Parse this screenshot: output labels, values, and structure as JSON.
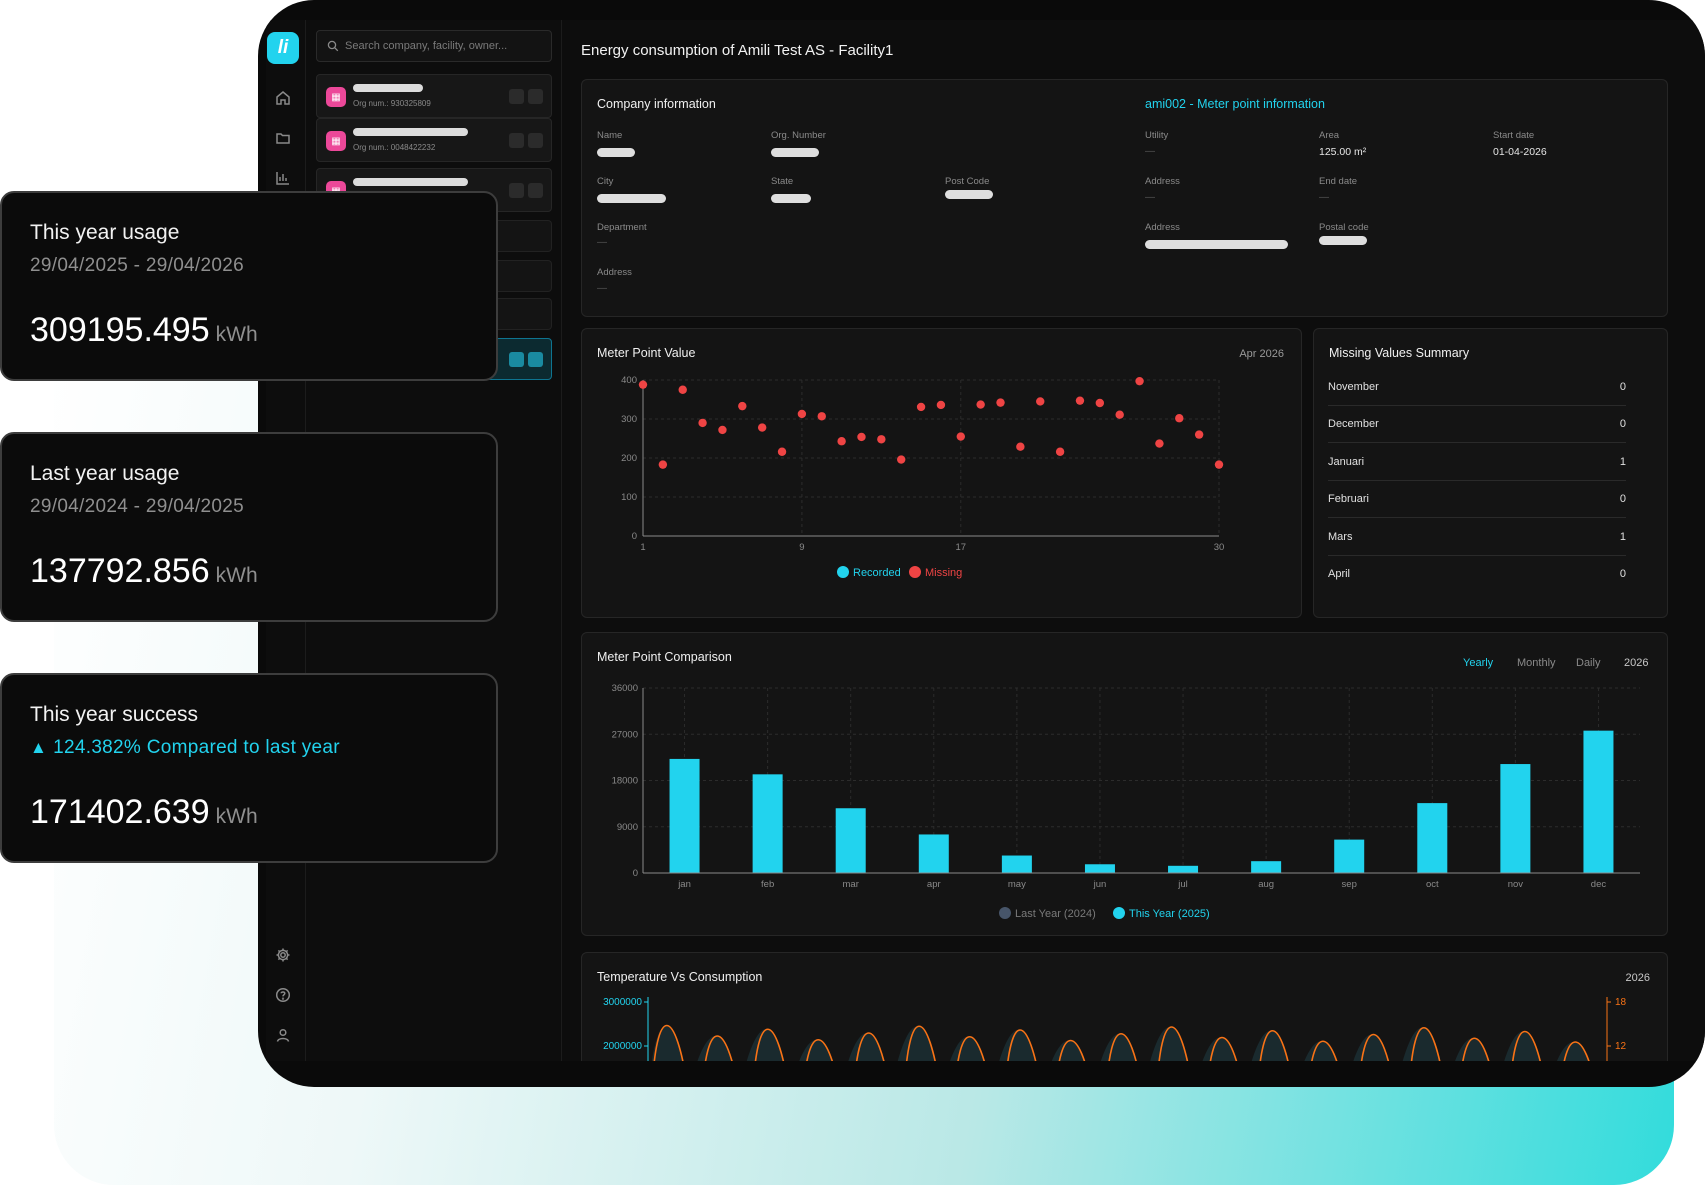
{
  "app": {
    "logo_text": "li",
    "accent": "#22d3ee",
    "missing_color": "#ef4444"
  },
  "nav_icons": [
    "home-icon",
    "folder-icon",
    "bar-chart-icon",
    "gear-icon",
    "help-icon",
    "user-icon"
  ],
  "sidebar": {
    "search_placeholder": "Search company, facility, owner...",
    "companies": [
      {
        "org": "Org num.: 930325809"
      },
      {
        "org": "Org num.: 0048422232"
      }
    ]
  },
  "page": {
    "title": "Energy consumption of Amili Test AS - Facility1"
  },
  "company_info": {
    "title": "Company information",
    "name_label": "Name",
    "org_label": "Org. Number",
    "city_label": "City",
    "state_label": "State",
    "postcode_label": "Post Code",
    "department_label": "Department",
    "department_value": "—",
    "address_label": "Address",
    "address_value": "—"
  },
  "meter_info": {
    "title": "ami002 - Meter point information",
    "utility_label": "Utility",
    "utility_value": "—",
    "area_label": "Area",
    "area_value": "125.00 m²",
    "start_label": "Start date",
    "start_value": "01-04-2026",
    "address_label": "Address",
    "address_value": "—",
    "end_label": "End date",
    "end_value": "—",
    "address2_label": "Address",
    "postal_label": "Postal code"
  },
  "meter_value": {
    "title": "Meter Point Value",
    "period": "Apr 2026",
    "legend_recorded": "Recorded",
    "legend_missing": "Missing"
  },
  "missing_summary": {
    "title": "Missing Values Summary",
    "rows": [
      {
        "month": "November",
        "value": "0"
      },
      {
        "month": "December",
        "value": "0"
      },
      {
        "month": "Januari",
        "value": "1"
      },
      {
        "month": "Februari",
        "value": "0"
      },
      {
        "month": "Mars",
        "value": "1"
      },
      {
        "month": "April",
        "value": "0"
      }
    ]
  },
  "comparison": {
    "title": "Meter Point Comparison",
    "tabs": {
      "yearly": "Yearly",
      "monthly": "Monthly",
      "daily": "Daily"
    },
    "year": "2026",
    "legend_last": "Last Year (2024)",
    "legend_this": "This Year (2025)"
  },
  "temperature": {
    "title": "Temperature Vs Consumption",
    "year": "2026",
    "left_ticks": [
      "3000000",
      "2000000"
    ],
    "right_ticks": [
      "18",
      "12"
    ]
  },
  "overlays": [
    {
      "title": "This year usage",
      "subtitle": "29/04/2025 - 29/04/2026",
      "value": "309195.495",
      "unit": "kWh"
    },
    {
      "title": "Last year usage",
      "subtitle": "29/04/2024 - 29/04/2025",
      "value": "137792.856",
      "unit": "kWh"
    },
    {
      "title": "This year success",
      "subtitle": "124.382% Compared to last year",
      "value": "171402.639",
      "unit": "kWh"
    }
  ],
  "chart_data": [
    {
      "type": "scatter",
      "title": "Meter Point Value",
      "x_ticks": [
        1,
        9,
        17,
        30
      ],
      "y_ticks": [
        0,
        100,
        200,
        300,
        400
      ],
      "xlim": [
        1,
        30
      ],
      "ylim": [
        0,
        400
      ],
      "legend": [
        "Recorded",
        "Missing"
      ],
      "series": [
        {
          "name": "Missing",
          "x": [
            1,
            2,
            3,
            4,
            5,
            6,
            7,
            8,
            9,
            10,
            11,
            12,
            13,
            14,
            15,
            16,
            17,
            18,
            19,
            20,
            21,
            22,
            23,
            24,
            25,
            26,
            27,
            28,
            29,
            30
          ],
          "y": [
            388,
            183,
            375,
            290,
            272,
            333,
            278,
            216,
            313,
            307,
            243,
            254,
            248,
            196,
            331,
            336,
            255,
            337,
            342,
            229,
            345,
            216,
            347,
            341,
            311,
            397,
            237,
            302,
            260,
            183
          ]
        }
      ]
    },
    {
      "type": "bar",
      "title": "Meter Point Comparison",
      "categories": [
        "jan",
        "feb",
        "mar",
        "apr",
        "may",
        "jun",
        "jul",
        "aug",
        "sep",
        "oct",
        "nov",
        "dec"
      ],
      "y_ticks": [
        0,
        9000,
        18000,
        27000,
        36000
      ],
      "ylim": [
        0,
        36000
      ],
      "legend": [
        "Last Year (2024)",
        "This Year (2025)"
      ],
      "series": [
        {
          "name": "Last Year (2024)",
          "values": [
            0,
            0,
            0,
            0,
            0,
            0,
            0,
            0,
            0,
            0,
            0,
            0
          ]
        },
        {
          "name": "This Year (2025)",
          "values": [
            22200,
            19200,
            12600,
            7500,
            3400,
            1700,
            1400,
            2300,
            6500,
            13600,
            21200,
            27700
          ]
        }
      ]
    }
  ]
}
